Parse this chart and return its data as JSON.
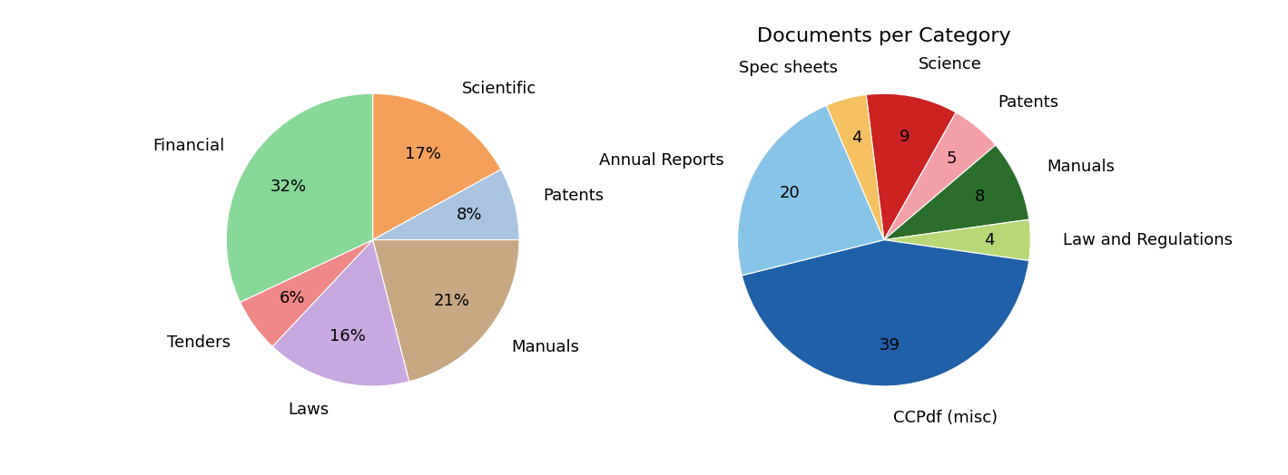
{
  "chart1": {
    "labels": [
      "Scientific",
      "Patents",
      "Manuals",
      "Laws",
      "Tenders",
      "Financial"
    ],
    "values": [
      17,
      8,
      21,
      16,
      6,
      32
    ],
    "colors": [
      "#F5A05A",
      "#A8C4E0",
      "#C8A882",
      "#C8A8E0",
      "#F08888",
      "#88D898"
    ],
    "startangle": 90,
    "pct_distance": 0.68
  },
  "chart2": {
    "title": "Documents per Category",
    "labels": [
      "Science",
      "Patents",
      "Manuals",
      "Law and Regulations",
      "CCPdf (misc)",
      "Annual Reports",
      "Spec sheets"
    ],
    "values": [
      9,
      5,
      8,
      4,
      39,
      20,
      4
    ],
    "colors": [
      "#CC2222",
      "#F4A0A8",
      "#2A6E2A",
      "#B8D878",
      "#2060A8",
      "#88C4E8",
      "#F4C060"
    ],
    "startangle": 97,
    "pct_distance": 0.72
  },
  "figsize": [
    14.19,
    5.24
  ],
  "dpi": 100,
  "label_fontsize": 13,
  "pct_fontsize": 13,
  "title_fontsize": 16
}
